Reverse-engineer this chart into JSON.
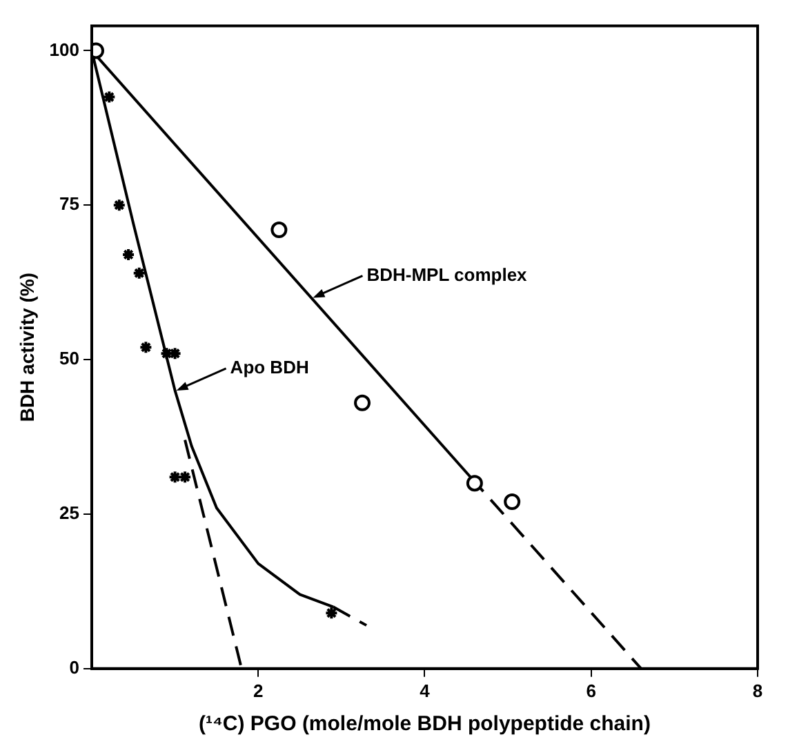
{
  "chart_data": {
    "type": "scatter",
    "xlabel": "(¹⁴C) PGO (mole/mole BDH polypeptide chain)",
    "ylabel": "BDH activity (%)",
    "xlim": [
      0,
      8
    ],
    "xticks": [
      2,
      4,
      6,
      8
    ],
    "ylim": [
      0,
      104
    ],
    "yticks": [
      0,
      25,
      50,
      75,
      100
    ],
    "grid": false,
    "legend": false,
    "series": [
      {
        "type": "scatter",
        "marker": "circle",
        "color": "#000000",
        "x": [
          0.05,
          2.25,
          3.25,
          4.6,
          5.05
        ],
        "values": [
          100,
          71,
          43,
          30,
          27
        ]
      },
      {
        "type": "scatter",
        "marker": "cross",
        "color": "#000000",
        "x": [
          0.21,
          0.33,
          0.44,
          0.57,
          0.65,
          0.9,
          1.0,
          1.0,
          1.12,
          2.88
        ],
        "values": [
          92.5,
          75,
          67,
          64,
          52,
          51,
          51,
          31,
          31,
          9
        ]
      },
      {
        "type": "line",
        "line_style": "solid",
        "color": "#000000",
        "x": [
          0,
          4.55
        ],
        "values": [
          100,
          31
        ]
      },
      {
        "type": "line",
        "line_style": "dashed",
        "color": "#000000",
        "x": [
          4.55,
          6.6
        ],
        "values": [
          31,
          0
        ]
      },
      {
        "type": "line",
        "line_style": "solid",
        "color": "#000000",
        "x": [
          0,
          0.5,
          1.0,
          1.2,
          1.5,
          2.0,
          2.5,
          2.9
        ],
        "values": [
          100,
          72,
          45,
          36,
          26,
          17,
          12,
          10
        ]
      },
      {
        "type": "line",
        "line_style": "dashed",
        "color": "#000000",
        "x": [
          2.9,
          3.3
        ],
        "values": [
          10,
          7
        ]
      },
      {
        "type": "line",
        "line_style": "dashed",
        "color": "#000000",
        "x": [
          1.12,
          1.8
        ],
        "values": [
          37,
          0
        ]
      }
    ],
    "annotations": [
      {
        "text": "BDH-MPL complex",
        "x": 2.64,
        "y": 60
      },
      {
        "text": "Apo BDH",
        "x": 1.0,
        "y": 45
      }
    ]
  }
}
